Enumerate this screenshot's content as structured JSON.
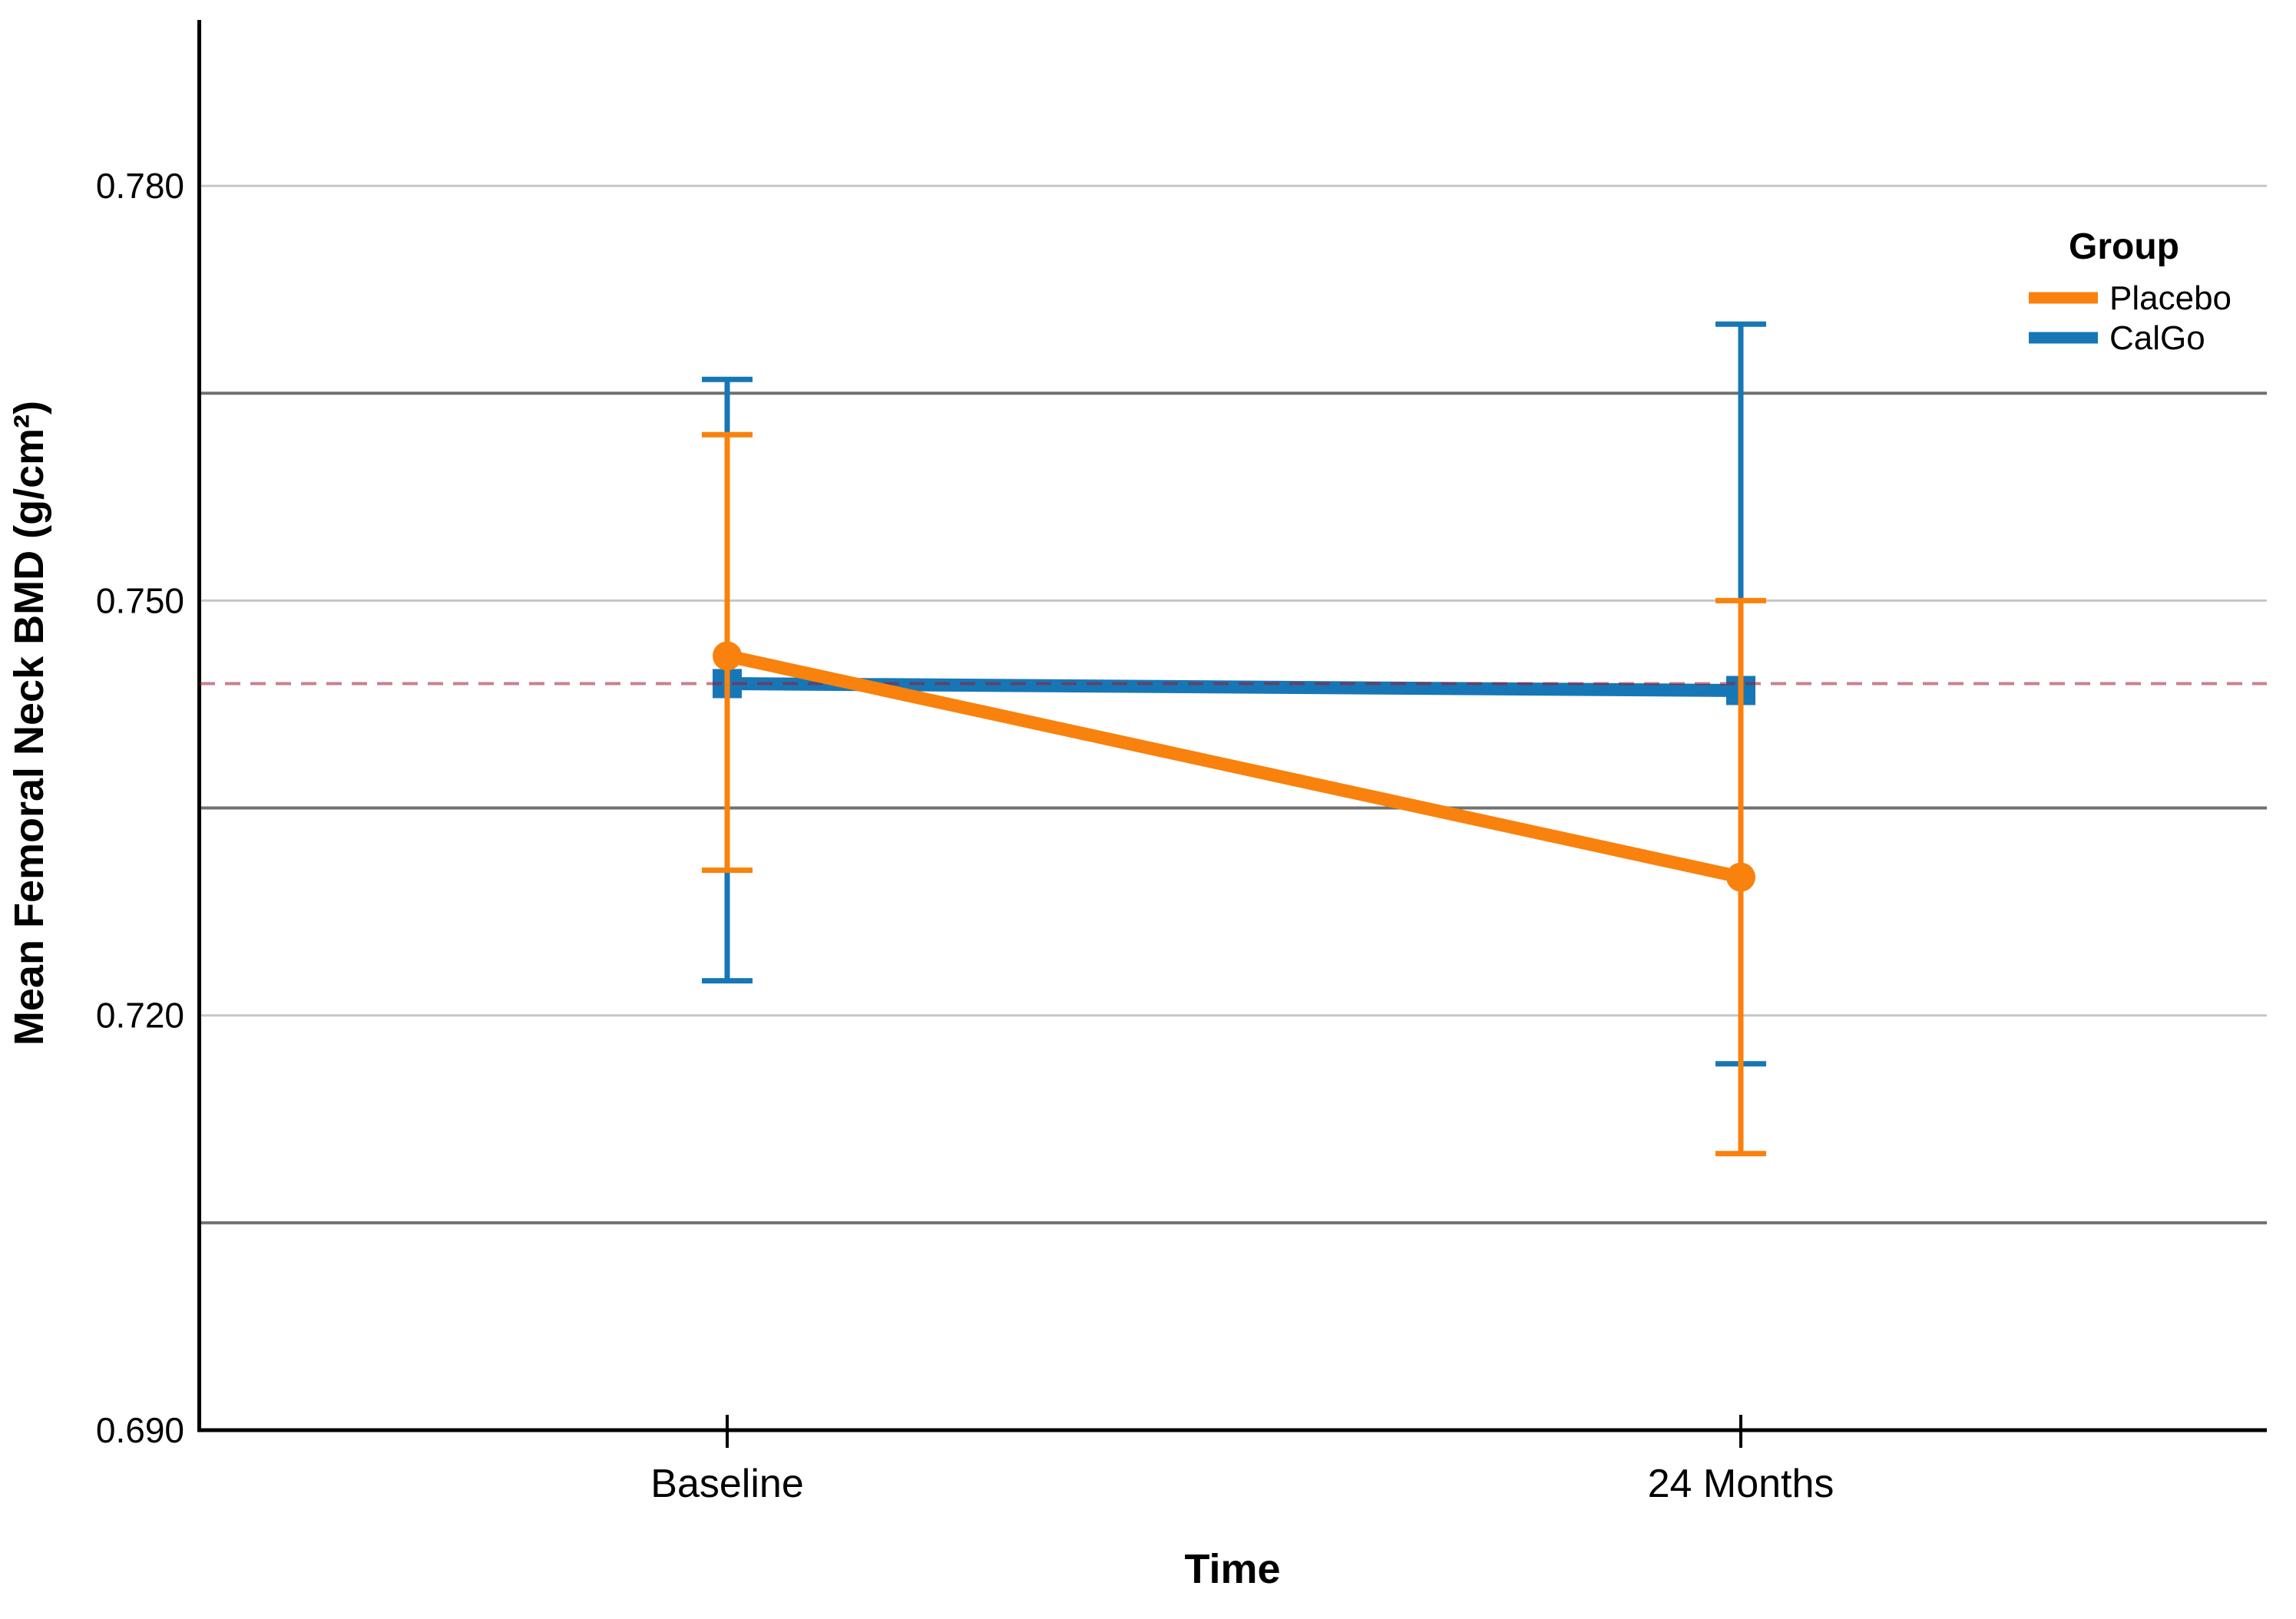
{
  "figure": {
    "background": "#ffffff",
    "x_axis_title": "Time",
    "y_axis_title": "Mean Femoral Neck BMD (g/cm²)",
    "x_tick_labels": [
      "Baseline",
      "24 Months"
    ],
    "y_tick_labels": [
      "0.690",
      "0.720",
      "0.750",
      "0.780"
    ],
    "legend_title": "Group",
    "legend_items": [
      "Placebo",
      "CalGo"
    ]
  },
  "chart_data": {
    "type": "line",
    "title": "",
    "xlabel": "Time",
    "ylabel": "Mean Femoral Neck BMD (g/cm²)",
    "categories": [
      "Baseline",
      "24 Months"
    ],
    "ylim": [
      0.69,
      0.792
    ],
    "yticks": [
      0.69,
      0.72,
      0.75,
      0.78
    ],
    "grid_on": true,
    "gridlines": {
      "light": [
        0.72,
        0.75,
        0.78
      ],
      "dark": [
        0.705,
        0.735,
        0.765
      ]
    },
    "legend": {
      "title": "Group",
      "position": "top-right"
    },
    "reference_line": {
      "value": 0.744,
      "style": "dashed",
      "color_hint": "#c9808d"
    },
    "series": [
      {
        "name": "Placebo",
        "color": "#f8820d",
        "marker": "circle",
        "values": [
          0.746,
          0.73
        ],
        "ci_lower": [
          0.7305,
          0.71
        ],
        "ci_upper": [
          0.762,
          0.75
        ]
      },
      {
        "name": "CalGo",
        "color": "#1777b6",
        "marker": "square",
        "values": [
          0.744,
          0.7435
        ],
        "ci_lower": [
          0.7225,
          0.7165
        ],
        "ci_upper": [
          0.766,
          0.77
        ]
      }
    ]
  }
}
